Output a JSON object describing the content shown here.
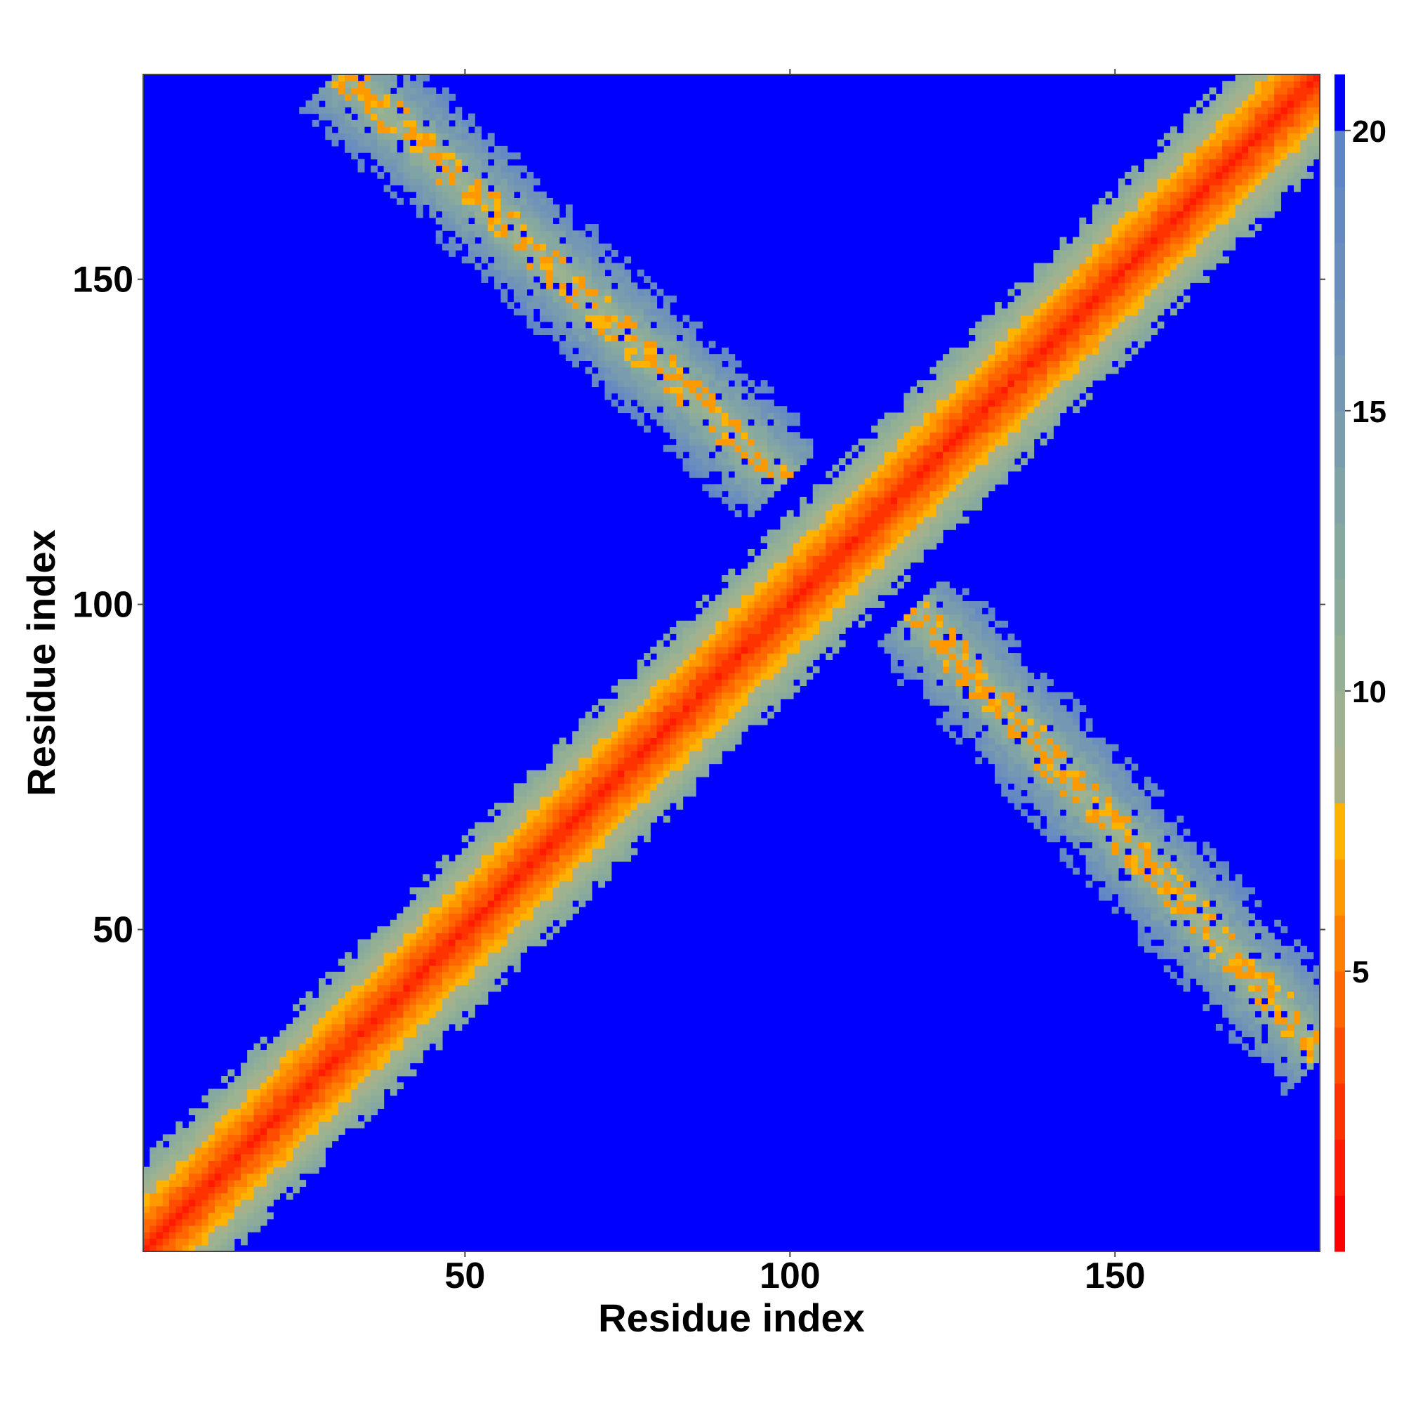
{
  "chart_data": {
    "type": "heatmap",
    "title": "",
    "xlabel": "Residue index",
    "ylabel": "Residue index",
    "n_residues": 181,
    "xlim": [
      1,
      181
    ],
    "ylim": [
      1,
      181
    ],
    "x_ticks": [
      "50",
      "100",
      "150"
    ],
    "y_ticks": [
      "50",
      "100",
      "150"
    ],
    "colorbar": {
      "ticks": [
        "5",
        "10",
        "15",
        "20"
      ],
      "range": [
        0,
        21
      ],
      "levels": [
        {
          "from": 0,
          "to": 1,
          "color": "#ff0000"
        },
        {
          "from": 1,
          "to": 2,
          "color": "#ff1a00"
        },
        {
          "from": 2,
          "to": 3,
          "color": "#ff3300"
        },
        {
          "from": 3,
          "to": 4,
          "color": "#ff4d00"
        },
        {
          "from": 4,
          "to": 5,
          "color": "#ff6600"
        },
        {
          "from": 5,
          "to": 6,
          "color": "#ff8000"
        },
        {
          "from": 6,
          "to": 7,
          "color": "#ff9900"
        },
        {
          "from": 7,
          "to": 8,
          "color": "#ffb300"
        },
        {
          "from": 8,
          "to": 9,
          "color": "#a8b08a"
        },
        {
          "from": 9,
          "to": 10,
          "color": "#9db290"
        },
        {
          "from": 10,
          "to": 11,
          "color": "#94b094"
        },
        {
          "from": 11,
          "to": 12,
          "color": "#8cab9a"
        },
        {
          "from": 12,
          "to": 13,
          "color": "#85a8a0"
        },
        {
          "from": 13,
          "to": 14,
          "color": "#7fa3a6"
        },
        {
          "from": 14,
          "to": 15,
          "color": "#799dad"
        },
        {
          "from": 15,
          "to": 16,
          "color": "#7498b3"
        },
        {
          "from": 16,
          "to": 17,
          "color": "#6f93b8"
        },
        {
          "from": 17,
          "to": 18,
          "color": "#6a8ebd"
        },
        {
          "from": 18,
          "to": 19,
          "color": "#6589c2"
        },
        {
          "from": 19,
          "to": 20,
          "color": "#5f84c8"
        },
        {
          "from": 20,
          "to": 21,
          "color": "#0000ff"
        }
      ]
    },
    "background_value": 21,
    "features": [
      {
        "type": "diagonal_band",
        "from": [
          1,
          1
        ],
        "to": [
          181,
          181
        ],
        "half_width": 14
      },
      {
        "type": "off_diagonal_band",
        "from": [
          32,
          181
        ],
        "to": [
          98,
          120
        ],
        "half_width": 8
      },
      {
        "type": "off_diagonal_band",
        "from": [
          120,
          98
        ],
        "to": [
          181,
          32
        ],
        "half_width": 8
      }
    ]
  }
}
